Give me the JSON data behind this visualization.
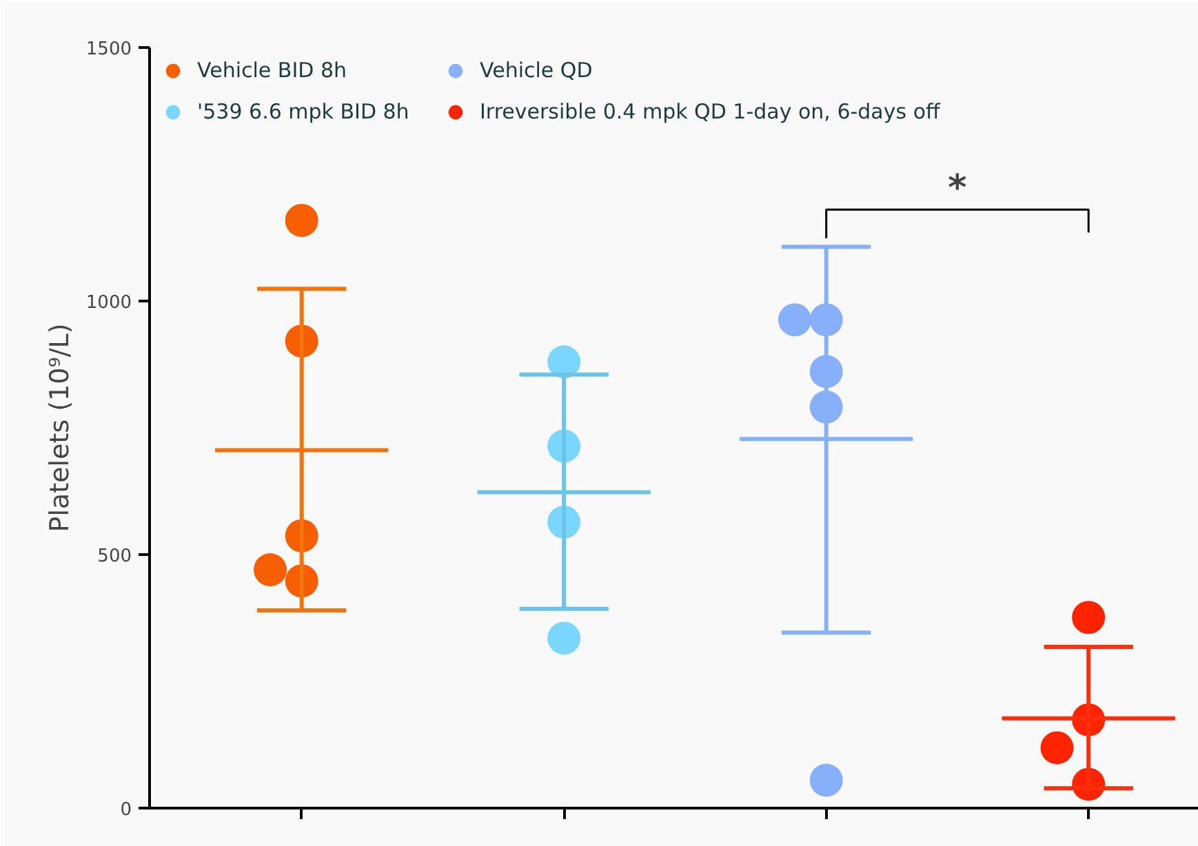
{
  "chart_data": {
    "type": "scatter",
    "ylabel": "Platelets (10⁹/L)",
    "categories": [
      null,
      null,
      null,
      null
    ],
    "ylim": [
      0,
      1500
    ],
    "yticks": [
      0,
      500,
      1000,
      1500
    ],
    "tick_labels": "y",
    "grid": false,
    "legend": "top left",
    "marker": "circle",
    "series": [
      {
        "name": "Vehicle BID 8h",
        "color": "#f65e00",
        "values": [
          1159,
          null,
          null,
          null
        ]
      },
      {
        "color": "#f65e00",
        "values": [
          921,
          null,
          null,
          null
        ]
      },
      {
        "color": "#f65e00",
        "values": [
          537,
          null,
          null,
          null
        ]
      },
      {
        "color": "#f65e00",
        "values": [
          448,
          null,
          null,
          null
        ]
      },
      {
        "color": "#f65e00",
        "values": [
          470,
          null,
          null,
          null
        ]
      },
      {
        "name": "'539 6.6 mpk BID 8h",
        "color": "#7ad6fc",
        "values": [
          null,
          880,
          null,
          null
        ]
      },
      {
        "color": "#7ad6fc",
        "values": [
          null,
          714,
          null,
          null
        ]
      },
      {
        "color": "#7ad6fc",
        "values": [
          null,
          564,
          null,
          null
        ]
      },
      {
        "color": "#7ad6fc",
        "values": [
          null,
          335,
          null,
          null
        ]
      },
      {
        "name": "Vehicle QD",
        "color": "#88aff9",
        "values": [
          null,
          null,
          963,
          null
        ]
      },
      {
        "color": "#88aff9",
        "values": [
          null,
          null,
          963,
          null
        ]
      },
      {
        "color": "#88aff9",
        "values": [
          null,
          null,
          861,
          null
        ]
      },
      {
        "color": "#88aff9",
        "values": [
          null,
          null,
          791,
          null
        ]
      },
      {
        "color": "#88aff9",
        "values": [
          null,
          null,
          55,
          null
        ]
      },
      {
        "name": "Irreversible 0.4 mpk QD 1-day on, 6-days off",
        "color": "#ff2400",
        "values": [
          null,
          null,
          null,
          376
        ]
      },
      {
        "color": "#ff2400",
        "values": [
          null,
          null,
          null,
          174
        ]
      },
      {
        "color": "#ff2400",
        "values": [
          null,
          null,
          null,
          119
        ]
      },
      {
        "color": "#ff2400",
        "values": [
          null,
          null,
          null,
          47
        ]
      },
      {
        "type": "box",
        "colors": [
          "#f0740f",
          "#6cc3e6",
          "#88aff9",
          "#ff3010"
        ],
        "boxes": [
          {
            "low": 390,
            "q1": 706,
            "median": 706,
            "q3": 706,
            "high": 1024
          },
          {
            "low": 393,
            "q1": 623,
            "median": 623,
            "q3": 623,
            "high": 855
          },
          {
            "low": 346,
            "q1": 728,
            "median": 728,
            "q3": 728,
            "high": 1107
          },
          {
            "low": 39,
            "q1": 177,
            "median": 177,
            "q3": 177,
            "high": 318
          }
        ]
      }
    ],
    "annotations": [
      "*"
    ]
  }
}
